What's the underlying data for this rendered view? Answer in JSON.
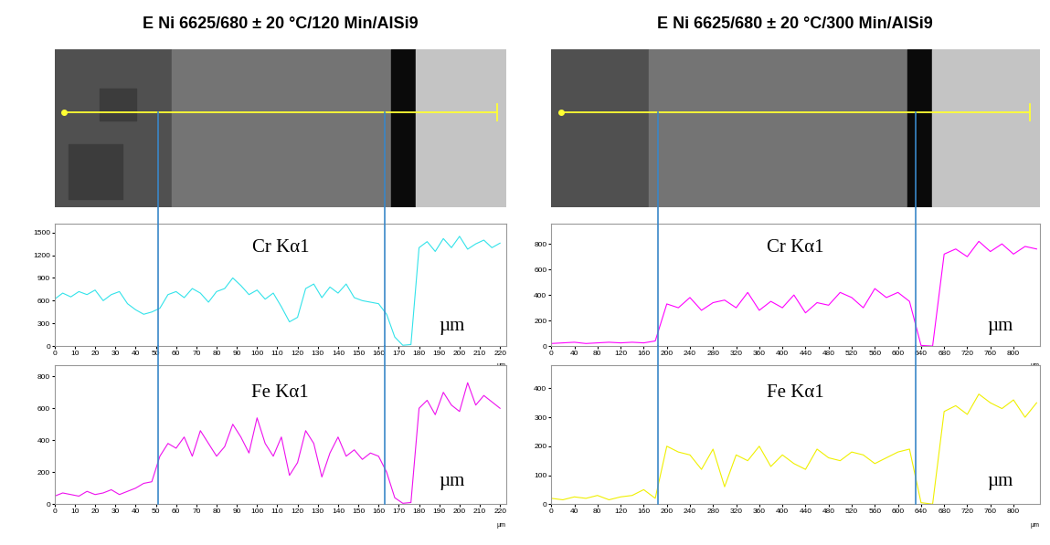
{
  "chart_data": [
    {
      "type": "line",
      "title": "E Ni 6625/680 ± 20 °C/120 Min/AlSi9",
      "annotations": [
        "Cr Kα1",
        "µm"
      ],
      "xlabel": "µm",
      "color": "#33e3ea",
      "boundaries": [
        51,
        163
      ],
      "x": [
        0,
        4,
        8,
        12,
        16,
        20,
        24,
        28,
        32,
        36,
        40,
        44,
        48,
        52,
        56,
        60,
        64,
        68,
        72,
        76,
        80,
        84,
        88,
        92,
        96,
        100,
        104,
        108,
        112,
        116,
        120,
        124,
        128,
        132,
        136,
        140,
        144,
        148,
        152,
        156,
        160,
        164,
        168,
        172,
        176,
        180,
        184,
        188,
        192,
        196,
        200,
        204,
        208,
        212,
        216,
        220
      ],
      "values": [
        620,
        700,
        650,
        720,
        680,
        740,
        600,
        680,
        720,
        560,
        480,
        420,
        450,
        500,
        680,
        720,
        640,
        760,
        700,
        580,
        720,
        760,
        900,
        800,
        680,
        740,
        620,
        700,
        520,
        320,
        380,
        760,
        820,
        640,
        780,
        700,
        820,
        640,
        600,
        580,
        560,
        420,
        120,
        10,
        20,
        1300,
        1380,
        1250,
        1420,
        1300,
        1450,
        1280,
        1350,
        1400,
        1300,
        1360
      ],
      "xlim": [
        0,
        223
      ],
      "ylim": [
        0,
        1620
      ],
      "xticks": [
        0,
        10,
        20,
        30,
        40,
        50,
        60,
        70,
        80,
        90,
        100,
        110,
        120,
        130,
        140,
        150,
        160,
        170,
        180,
        190,
        200,
        210,
        220
      ],
      "yticks": [
        0,
        300,
        600,
        900,
        1200,
        1500
      ]
    },
    {
      "type": "line",
      "annotations": [
        "Fe Kα1",
        "µm"
      ],
      "xlabel": "µm",
      "color": "#ee11ee",
      "boundaries": [
        51,
        163
      ],
      "x": [
        0,
        4,
        8,
        12,
        16,
        20,
        24,
        28,
        32,
        36,
        40,
        44,
        48,
        52,
        56,
        60,
        64,
        68,
        72,
        76,
        80,
        84,
        88,
        92,
        96,
        100,
        104,
        108,
        112,
        116,
        120,
        124,
        128,
        132,
        136,
        140,
        144,
        148,
        152,
        156,
        160,
        164,
        168,
        172,
        176,
        180,
        184,
        188,
        192,
        196,
        200,
        204,
        208,
        212,
        216,
        220
      ],
      "values": [
        50,
        70,
        60,
        50,
        80,
        60,
        70,
        90,
        60,
        80,
        100,
        130,
        140,
        300,
        380,
        350,
        420,
        300,
        460,
        380,
        300,
        360,
        500,
        420,
        320,
        540,
        380,
        300,
        420,
        180,
        260,
        460,
        380,
        170,
        320,
        420,
        300,
        340,
        280,
        320,
        300,
        200,
        40,
        5,
        10,
        600,
        650,
        560,
        700,
        620,
        580,
        760,
        620,
        680,
        640,
        600
      ],
      "xlim": [
        0,
        223
      ],
      "ylim": [
        0,
        870
      ],
      "xticks": [
        0,
        10,
        20,
        30,
        40,
        50,
        60,
        70,
        80,
        90,
        100,
        110,
        120,
        130,
        140,
        150,
        160,
        170,
        180,
        190,
        200,
        210,
        220
      ],
      "yticks": [
        0,
        200,
        400,
        600,
        800
      ]
    },
    {
      "type": "line",
      "title": "E Ni 6625/680 ± 20 °C/300 Min/AlSi9",
      "annotations": [
        "Cr Kα1",
        "µm"
      ],
      "xlabel": "µm",
      "color": "#ff00ff",
      "boundaries": [
        185,
        630
      ],
      "x": [
        0,
        20,
        40,
        60,
        80,
        100,
        120,
        140,
        160,
        180,
        200,
        220,
        240,
        260,
        280,
        300,
        320,
        340,
        360,
        380,
        400,
        420,
        440,
        460,
        480,
        500,
        520,
        540,
        560,
        580,
        600,
        620,
        640,
        660,
        680,
        700,
        720,
        740,
        760,
        780,
        800,
        820,
        840
      ],
      "values": [
        20,
        25,
        30,
        20,
        25,
        30,
        25,
        30,
        25,
        40,
        330,
        300,
        380,
        280,
        340,
        360,
        300,
        420,
        280,
        350,
        300,
        400,
        260,
        340,
        320,
        420,
        380,
        300,
        450,
        380,
        420,
        350,
        5,
        0,
        720,
        760,
        700,
        820,
        740,
        800,
        720,
        780,
        760
      ],
      "xlim": [
        0,
        845
      ],
      "ylim": [
        0,
        960
      ],
      "xticks": [
        0,
        40,
        80,
        120,
        160,
        200,
        240,
        280,
        320,
        360,
        400,
        440,
        480,
        520,
        560,
        600,
        640,
        680,
        720,
        760,
        800
      ],
      "yticks": [
        0,
        200,
        400,
        600,
        800
      ]
    },
    {
      "type": "line",
      "annotations": [
        "Fe Kα1",
        "µm"
      ],
      "xlabel": "µm",
      "color": "#f0f000",
      "boundaries": [
        185,
        630
      ],
      "x": [
        0,
        20,
        40,
        60,
        80,
        100,
        120,
        140,
        160,
        180,
        200,
        220,
        240,
        260,
        280,
        300,
        320,
        340,
        360,
        380,
        400,
        420,
        440,
        460,
        480,
        500,
        520,
        540,
        560,
        580,
        600,
        620,
        640,
        660,
        680,
        700,
        720,
        740,
        760,
        780,
        800,
        820,
        840
      ],
      "values": [
        20,
        15,
        25,
        20,
        30,
        15,
        25,
        30,
        50,
        20,
        200,
        180,
        170,
        120,
        190,
        60,
        170,
        150,
        200,
        130,
        170,
        140,
        120,
        190,
        160,
        150,
        180,
        170,
        140,
        160,
        180,
        190,
        5,
        0,
        320,
        340,
        310,
        380,
        350,
        330,
        360,
        300,
        350
      ],
      "xlim": [
        0,
        845
      ],
      "ylim": [
        0,
        480
      ],
      "xticks": [
        0,
        40,
        80,
        120,
        160,
        200,
        240,
        280,
        320,
        360,
        400,
        440,
        480,
        520,
        560,
        600,
        640,
        680,
        720,
        760,
        800
      ],
      "yticks": [
        0,
        100,
        200,
        300,
        400
      ]
    }
  ]
}
